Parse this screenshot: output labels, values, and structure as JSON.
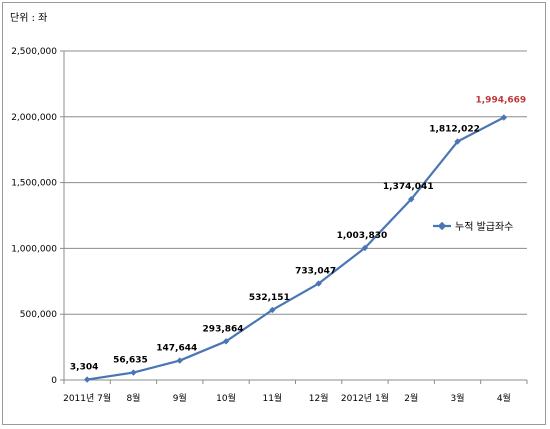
{
  "chart_data": {
    "type": "line",
    "unit_label": "단위 : 좌",
    "categories": [
      "2011년 7월",
      "8월",
      "9월",
      "10월",
      "11월",
      "12월",
      "2012년 1월",
      "2월",
      "3월",
      "4월"
    ],
    "series": [
      {
        "name": "누적 발급좌수",
        "values": [
          3304,
          56635,
          147644,
          293864,
          532151,
          733047,
          1003830,
          1374041,
          1812022,
          1994669
        ],
        "labels": [
          "3,304",
          "56,635",
          "147,644",
          "293,864",
          "532,151",
          "733,047",
          "1,003,830",
          "1,374,041",
          "1,812,022",
          "1,994,669"
        ],
        "color": "#4a76b5"
      }
    ],
    "highlight_color": "#c0393b",
    "yticks": [
      "0",
      "500,000",
      "1,000,000",
      "1,500,000",
      "2,000,000",
      "2,500,000"
    ],
    "ylim": [
      0,
      2500000
    ],
    "grid": true,
    "legend_position": "right"
  }
}
